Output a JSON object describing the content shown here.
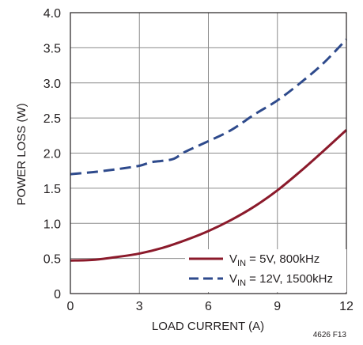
{
  "chart_data": {
    "type": "line",
    "xlabel": "LOAD CURRENT (A)",
    "ylabel": "POWER LOSS (W)",
    "xlim": [
      0,
      12
    ],
    "ylim": [
      0,
      4.0
    ],
    "xticks": [
      0,
      3,
      6,
      9,
      12
    ],
    "xtick_labels": [
      "0",
      "3",
      "6",
      "9",
      "12"
    ],
    "yticks": [
      0,
      0.5,
      1.0,
      1.5,
      2.0,
      2.5,
      3.0,
      3.5,
      4.0
    ],
    "ytick_labels": [
      "0",
      "0.5",
      "1.0",
      "1.5",
      "2.0",
      "2.5",
      "3.0",
      "3.5",
      "4.0"
    ],
    "grid": true,
    "legend_position": "bottom-right",
    "figure_id": "4626 F13",
    "series": [
      {
        "name_main": "V",
        "name_sub": "IN",
        "name_rest": " = 5V, 800kHz",
        "color": "#8b1a2b",
        "dash": "solid",
        "x": [
          0,
          1,
          2,
          3,
          4,
          5,
          6,
          7,
          8,
          9,
          10,
          11,
          12
        ],
        "y": [
          0.47,
          0.48,
          0.52,
          0.57,
          0.65,
          0.76,
          0.89,
          1.05,
          1.24,
          1.47,
          1.74,
          2.03,
          2.33
        ]
      },
      {
        "name_main": "V",
        "name_sub": "IN",
        "name_rest": " = 12V, 1500kHz",
        "color": "#2e4a8c",
        "dash": "dashed",
        "x": [
          0,
          1,
          2,
          3,
          3.5,
          4,
          4.5,
          5,
          6,
          7,
          8,
          9,
          10,
          11,
          12
        ],
        "y": [
          1.7,
          1.73,
          1.77,
          1.82,
          1.87,
          1.89,
          1.92,
          2.02,
          2.17,
          2.33,
          2.55,
          2.75,
          3.0,
          3.28,
          3.62
        ]
      }
    ]
  }
}
